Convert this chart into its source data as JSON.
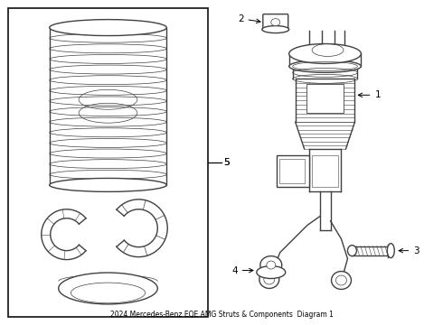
{
  "title": "2024 Mercedes-Benz EQE AMG Struts & Components  Diagram 1",
  "background_color": "#ffffff",
  "line_color": "#404040",
  "fig_width": 4.9,
  "fig_height": 3.6,
  "dpi": 100
}
